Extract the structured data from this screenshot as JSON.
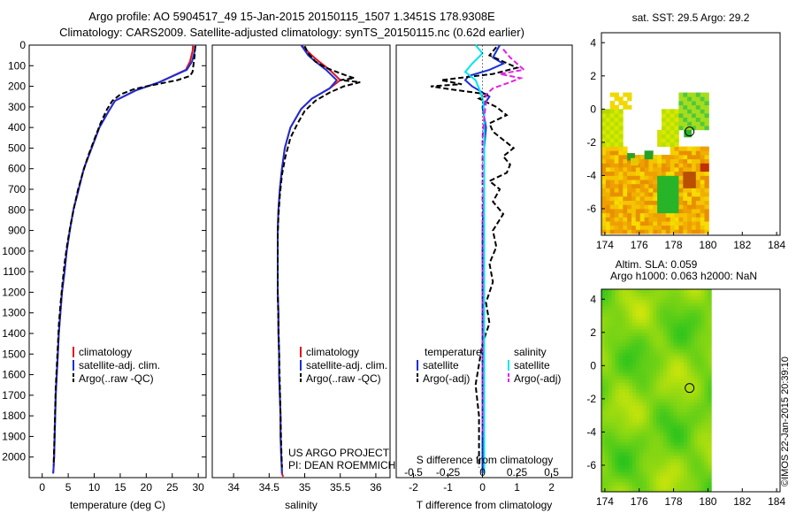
{
  "header": {
    "line1": "Argo profile: AO 5904517_49 15-Jan-2015 20150115_1507 1.3451S 178.9308E",
    "line2": "Climatology: CARS2009. Satellite-adjusted climatology: synTS_20150115.nc (0.62d earlier)"
  },
  "stamp": "©IMOS 22-Jan-2015 20:39:10",
  "colors": {
    "red": "#e0141e",
    "blue": "#1a2fd8",
    "black": "#000000",
    "cyan": "#00e5ee",
    "magenta": "#e61ee6"
  },
  "chart_data": [
    {
      "type": "line",
      "name": "temperature-profile",
      "xlabel": "temperature (deg C)",
      "ylabel": "",
      "xlim": [
        -2.5,
        31.5
      ],
      "ylim": [
        2100,
        0
      ],
      "xticks": [
        0,
        5,
        10,
        15,
        20,
        25,
        30
      ],
      "yticks": [
        0,
        100,
        200,
        300,
        400,
        500,
        600,
        700,
        800,
        900,
        1000,
        1100,
        1200,
        1300,
        1400,
        1500,
        1600,
        1700,
        1800,
        1900,
        2000
      ],
      "legend": [
        "climatology",
        "satellite-adj. clim.",
        "Argo(..raw -QC)"
      ],
      "series": [
        {
          "name": "climatology",
          "color": "red",
          "x": [
            29.0,
            28.9,
            28.4,
            27.6,
            22.5,
            18.0,
            14.0,
            12.8,
            11.0,
            9.5,
            8.0,
            7.0,
            6.0,
            5.3,
            4.7,
            4.3,
            3.8,
            3.5,
            3.2,
            3.0,
            2.8,
            2.6,
            2.5,
            2.4,
            2.3,
            2.2,
            2.1
          ],
          "y": [
            0,
            30,
            80,
            120,
            180,
            220,
            270,
            320,
            400,
            500,
            600,
            700,
            800,
            900,
            1000,
            1100,
            1200,
            1300,
            1400,
            1500,
            1600,
            1700,
            1800,
            1900,
            2000,
            2050,
            2080
          ]
        },
        {
          "name": "satellite",
          "color": "blue",
          "x": [
            29.5,
            29.3,
            28.8,
            27.8,
            22.5,
            18.0,
            14.0,
            12.8,
            11.0,
            9.5,
            8.0,
            7.0,
            6.0,
            5.3,
            4.7,
            4.3,
            3.8,
            3.5,
            3.2,
            3.0,
            2.8,
            2.6,
            2.5,
            2.4,
            2.3,
            2.2,
            2.1
          ],
          "y": [
            0,
            30,
            80,
            120,
            180,
            220,
            270,
            320,
            400,
            500,
            600,
            700,
            800,
            900,
            1000,
            1100,
            1200,
            1300,
            1400,
            1500,
            1600,
            1700,
            1800,
            1900,
            2000,
            2050,
            2080
          ]
        },
        {
          "name": "argo",
          "color": "black",
          "dash": true,
          "x": [
            29.4,
            29.3,
            29.1,
            28.9,
            28.4,
            26.0,
            23.0,
            20.0,
            17.5,
            15.0,
            13.5,
            12.5,
            11.2,
            10.0,
            8.8,
            7.8,
            6.9,
            6.1,
            5.4,
            4.8,
            4.3,
            3.9,
            3.5,
            3.2,
            3.0,
            2.8,
            2.6,
            2.5,
            2.4,
            2.3,
            2.2
          ],
          "y": [
            5,
            50,
            90,
            130,
            150,
            170,
            185,
            200,
            215,
            240,
            270,
            310,
            380,
            460,
            540,
            620,
            700,
            790,
            880,
            970,
            1060,
            1160,
            1260,
            1360,
            1460,
            1560,
            1660,
            1760,
            1860,
            1960,
            2040
          ]
        }
      ]
    },
    {
      "type": "line",
      "name": "salinity-profile",
      "xlabel": "salinity",
      "ylabel": "",
      "xlim": [
        33.7,
        36.2
      ],
      "ylim": [
        2100,
        0
      ],
      "xticks": [
        34,
        34.5,
        35,
        35.5,
        36
      ],
      "xticklabels": [
        "34",
        "34.5",
        "35",
        "35.5",
        "36"
      ],
      "legend": [
        "climatology",
        "satellite-adj. clim.",
        "Argo(..raw -QC)"
      ],
      "annotation": [
        "US ARGO PROJECT",
        "PI: DEAN ROEMMICH"
      ],
      "series": [
        {
          "name": "climatology",
          "color": "red",
          "x": [
            34.95,
            35.1,
            35.2,
            35.35,
            35.5,
            35.35,
            35.1,
            34.95,
            34.8,
            34.72,
            34.68,
            34.65,
            34.63,
            34.62,
            34.62,
            34.62,
            34.62,
            34.63,
            34.63,
            34.64,
            34.64,
            34.65,
            34.66,
            34.66,
            34.67,
            34.68,
            34.68,
            34.69,
            34.7
          ],
          "y": [
            0,
            50,
            80,
            120,
            170,
            210,
            260,
            310,
            400,
            500,
            600,
            700,
            800,
            900,
            1000,
            1100,
            1200,
            1300,
            1400,
            1500,
            1600,
            1700,
            1800,
            1900,
            2000,
            2050,
            2080,
            2090,
            2095
          ]
        },
        {
          "name": "satellite",
          "color": "blue",
          "x": [
            34.95,
            35.05,
            35.15,
            35.3,
            35.45,
            35.35,
            35.1,
            34.95,
            34.8,
            34.72,
            34.68,
            34.65,
            34.63,
            34.62,
            34.62,
            34.62,
            34.62,
            34.63,
            34.63,
            34.64,
            34.64,
            34.65,
            34.66,
            34.66,
            34.67,
            34.68
          ],
          "y": [
            0,
            50,
            80,
            120,
            170,
            210,
            260,
            310,
            400,
            500,
            600,
            700,
            800,
            900,
            1000,
            1100,
            1200,
            1300,
            1400,
            1500,
            1600,
            1700,
            1800,
            1900,
            2000,
            2080
          ]
        },
        {
          "name": "argo",
          "color": "black",
          "dash": true,
          "x": [
            35.0,
            35.05,
            35.15,
            35.3,
            35.45,
            35.6,
            35.7,
            35.5,
            35.78,
            35.55,
            35.35,
            35.15,
            35.0,
            34.9,
            34.8,
            34.73,
            34.68,
            34.65,
            34.63,
            34.62,
            34.62,
            34.62,
            34.63,
            34.64,
            34.65,
            34.66,
            34.67,
            34.68
          ],
          "y": [
            5,
            40,
            80,
            110,
            130,
            150,
            160,
            170,
            180,
            200,
            230,
            270,
            320,
            380,
            450,
            540,
            630,
            730,
            830,
            930,
            1050,
            1200,
            1350,
            1500,
            1650,
            1800,
            1950,
            2050
          ]
        }
      ]
    },
    {
      "type": "line",
      "name": "difference-profile",
      "xlabel": "T difference from climatology",
      "xlabel_top": "S difference from climatology",
      "xlim": [
        -2.5,
        2.6
      ],
      "ylim": [
        2100,
        0
      ],
      "xticks": [
        -2,
        -1,
        0,
        1,
        2
      ],
      "xticklabels": [
        "-2",
        "-1",
        "0",
        "1",
        "2"
      ],
      "sticks": [
        -2.0,
        -1.0,
        0,
        1.0,
        2.0
      ],
      "sticklabels": [
        "-0.5",
        "-0.25",
        "0",
        "0.25",
        "0.5"
      ],
      "legend_headers": [
        "temperature",
        "salinity"
      ],
      "legend": [
        "satellite",
        "Argo(-adj)",
        "satellite",
        "Argo(-adj)"
      ],
      "series": [
        {
          "name": "T satellite",
          "color": "blue",
          "x": [
            0.5,
            0.4,
            0.3,
            0.6,
            0.2,
            -0.4,
            -0.5,
            -0.3,
            0.2,
            0.0,
            0.1,
            0.05,
            0.05,
            0.0,
            0.0,
            0.0,
            0.0,
            0.0
          ],
          "y": [
            0,
            30,
            60,
            90,
            120,
            150,
            170,
            200,
            250,
            300,
            400,
            500,
            700,
            900,
            1200,
            1500,
            1800,
            2080
          ]
        },
        {
          "name": "T Argo",
          "color": "black",
          "dash": true,
          "x": [
            0.4,
            0.2,
            0.6,
            1.0,
            0.3,
            -1.2,
            -0.6,
            -1.5,
            -0.9,
            0.2,
            -0.1,
            0.4,
            0.7,
            0.2,
            0.3,
            0.6,
            0.9,
            0.6,
            0.8,
            0.7,
            0.2,
            0.5,
            0.3,
            0.6,
            0.3,
            0.4,
            0.2,
            0.3,
            0.1,
            0.2,
            0.0,
            -0.1,
            -0.2,
            -0.1,
            -0.1,
            -0.1
          ],
          "y": [
            10,
            50,
            80,
            110,
            140,
            170,
            190,
            200,
            215,
            240,
            260,
            300,
            340,
            380,
            420,
            460,
            500,
            540,
            580,
            620,
            660,
            700,
            760,
            820,
            900,
            980,
            1060,
            1150,
            1250,
            1350,
            1450,
            1550,
            1650,
            1800,
            1950,
            2050
          ]
        },
        {
          "name": "S satellite",
          "color": "cyan",
          "x": [
            -0.2,
            0.0,
            -0.3,
            -0.5,
            -0.2,
            -0.1,
            0.0,
            0.05,
            0.05,
            0.05,
            0.05,
            0.05,
            0.05,
            0.05,
            0.05,
            0.05,
            0.05
          ],
          "y": [
            0,
            40,
            90,
            130,
            170,
            210,
            260,
            320,
            400,
            500,
            700,
            900,
            1200,
            1500,
            1800,
            2000,
            2080
          ]
        },
        {
          "name": "S Argo",
          "color": "magenta",
          "dash": true,
          "x": [
            0.6,
            0.8,
            1.0,
            1.2,
            0.5,
            1.1,
            0.8,
            0.3,
            0.1,
            0.1,
            0.05,
            0.0,
            0.0,
            0.0,
            0.0,
            0.0,
            0.0,
            0.0
          ],
          "y": [
            20,
            60,
            90,
            120,
            140,
            160,
            180,
            210,
            240,
            280,
            350,
            450,
            600,
            800,
            1000,
            1300,
            1600,
            1900
          ]
        }
      ]
    },
    {
      "type": "heatmap",
      "name": "sst-map",
      "title": "sat. SST: 29.5  Argo: 29.2",
      "xlim": [
        173.8,
        184.2
      ],
      "ylim": [
        -7.6,
        4.6
      ],
      "xticks": [
        174,
        176,
        178,
        180,
        182,
        184
      ],
      "yticks": [
        -6,
        -4,
        -2,
        0,
        2,
        4
      ],
      "float_position": [
        178.93,
        -1.35
      ]
    },
    {
      "type": "heatmap",
      "name": "sla-map",
      "title": "Altim. SLA: 0.059",
      "subtitle": "Argo h1000: 0.063 h2000: NaN",
      "xlim": [
        173.8,
        184.2
      ],
      "ylim": [
        -7.6,
        4.6
      ],
      "xticks": [
        174,
        176,
        178,
        180,
        182,
        184
      ],
      "yticks": [
        -6,
        -4,
        -2,
        0,
        2,
        4
      ],
      "float_position": [
        178.93,
        -1.35
      ]
    }
  ]
}
